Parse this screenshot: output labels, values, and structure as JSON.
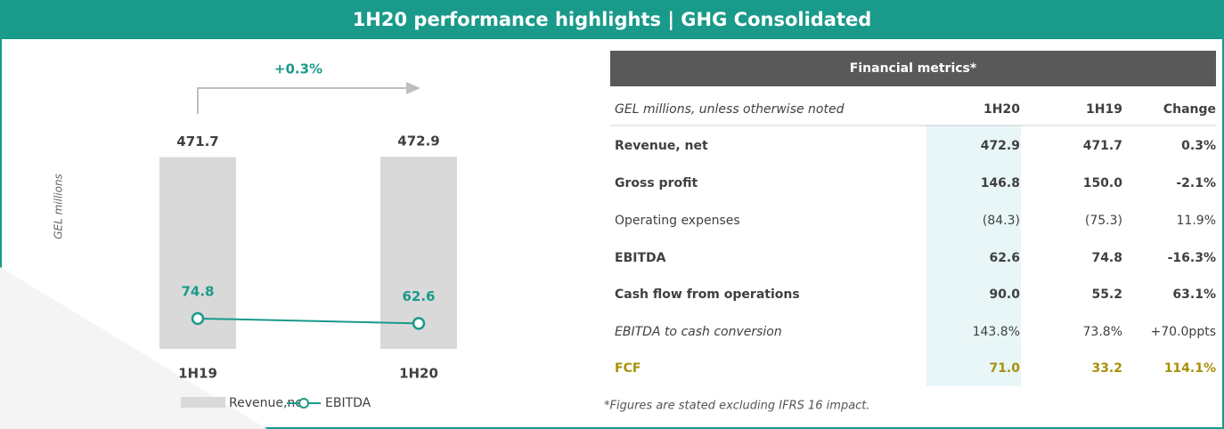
{
  "header": {
    "title": "1H20 performance highlights | GHG Consolidated"
  },
  "chart_data": {
    "type": "bar",
    "y_label": "GEL millions",
    "annotation": "+0.3%",
    "categories": [
      "1H19",
      "1H20"
    ],
    "series": [
      {
        "name": "Revenue,net",
        "color": "#d9d9d9",
        "values": [
          471.7,
          472.9
        ]
      },
      {
        "name": "EBITDA",
        "color": "#1a9a8a",
        "values": [
          74.8,
          62.6
        ]
      }
    ]
  },
  "table": {
    "title": "Financial metrics*",
    "columns": [
      "GEL millions, unless otherwise noted",
      "1H20",
      "1H19",
      "Change"
    ],
    "rows": [
      [
        "Revenue, net",
        "472.9",
        "471.7",
        "0.3%"
      ],
      [
        "Gross profit",
        "146.8",
        "150.0",
        "-2.1%"
      ],
      [
        "Operating expenses",
        "(84.3)",
        "(75.3)",
        "11.9%"
      ],
      [
        "EBITDA",
        "62.6",
        "74.8",
        "-16.3%"
      ],
      [
        "Cash flow from operations",
        "90.0",
        "55.2",
        "63.1%"
      ],
      [
        "EBITDA to cash conversion",
        "143.8%",
        "73.8%",
        "+70.0ppts"
      ],
      [
        "FCF",
        "71.0",
        "33.2",
        "114.1%"
      ]
    ],
    "footnote": "*Figures are stated excluding IFRS 16 impact."
  }
}
